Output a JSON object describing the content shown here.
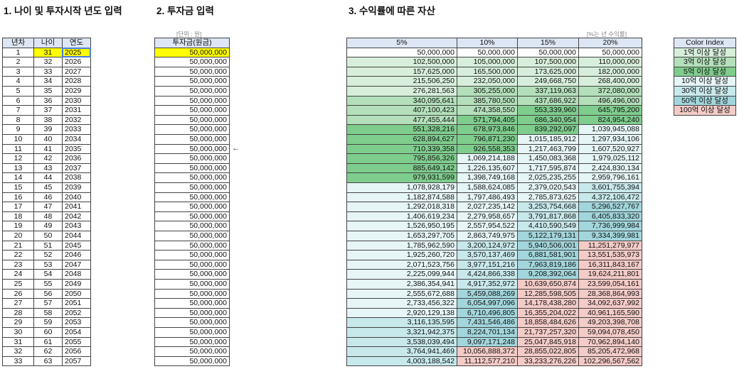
{
  "headers": {
    "section1": "1. 나이 및 투자시작 년도 입력",
    "section2": "2. 투자금 입력",
    "section3": "3. 수익률에 따른 자산"
  },
  "table1": {
    "columns": [
      "년차",
      "나이",
      "연도"
    ],
    "rows": [
      [
        1,
        31,
        2025
      ],
      [
        2,
        32,
        2026
      ],
      [
        3,
        33,
        2027
      ],
      [
        4,
        34,
        2028
      ],
      [
        5,
        35,
        2029
      ],
      [
        6,
        36,
        2030
      ],
      [
        7,
        37,
        2031
      ],
      [
        8,
        38,
        2032
      ],
      [
        9,
        39,
        2033
      ],
      [
        10,
        40,
        2034
      ],
      [
        11,
        41,
        2035
      ],
      [
        12,
        42,
        2036
      ],
      [
        13,
        43,
        2037
      ],
      [
        14,
        44,
        2038
      ],
      [
        15,
        45,
        2039
      ],
      [
        16,
        46,
        2040
      ],
      [
        17,
        47,
        2041
      ],
      [
        18,
        48,
        2042
      ],
      [
        19,
        49,
        2043
      ],
      [
        20,
        50,
        2044
      ],
      [
        21,
        51,
        2045
      ],
      [
        22,
        52,
        2046
      ],
      [
        23,
        53,
        2047
      ],
      [
        24,
        54,
        2048
      ],
      [
        25,
        55,
        2049
      ],
      [
        26,
        56,
        2050
      ],
      [
        27,
        57,
        2051
      ],
      [
        28,
        58,
        2052
      ],
      [
        29,
        59,
        2053
      ],
      [
        30,
        60,
        2054
      ],
      [
        31,
        61,
        2055
      ],
      [
        32,
        62,
        2056
      ],
      [
        33,
        63,
        2057
      ]
    ]
  },
  "table2": {
    "unit": "[단위 : 원]",
    "column": "투자금(원금)",
    "rows": [
      "50,000,000",
      "50,000,000",
      "50,000,000",
      "50,000,000",
      "50,000,000",
      "50,000,000",
      "50,000,000",
      "50,000,000",
      "50,000,000",
      "50,000,000",
      "50,000,000",
      "50,000,000",
      "50,000,000",
      "50,000,000",
      "50,000,000",
      "50,000,000",
      "50,000,000",
      "50,000,000",
      "50,000,000",
      "50,000,000",
      "50,000,000",
      "50,000,000",
      "50,000,000",
      "50,000,000",
      "50,000,000",
      "50,000,000",
      "50,000,000",
      "50,000,000",
      "50,000,000",
      "50,000,000",
      "50,000,000",
      "50,000,000",
      "50,000,000"
    ]
  },
  "arrow": "←",
  "table3": {
    "note": "[%는 년 수익률]",
    "columns": [
      "5%",
      "10%",
      "15%",
      "20%"
    ],
    "rows": [
      [
        "50,000,000",
        "50,000,000",
        "50,000,000",
        "50,000,000"
      ],
      [
        "102,500,000",
        "105,000,000",
        "107,500,000",
        "110,000,000"
      ],
      [
        "157,625,000",
        "165,500,000",
        "173,625,000",
        "182,000,000"
      ],
      [
        "215,506,250",
        "232,050,000",
        "249,668,750",
        "268,400,000"
      ],
      [
        "276,281,563",
        "305,255,000",
        "337,119,063",
        "372,080,000"
      ],
      [
        "340,095,641",
        "385,780,500",
        "437,686,922",
        "496,496,000"
      ],
      [
        "407,100,423",
        "474,358,550",
        "553,339,960",
        "645,795,200"
      ],
      [
        "477,455,444",
        "571,794,405",
        "686,340,954",
        "824,954,240"
      ],
      [
        "551,328,216",
        "678,973,846",
        "839,292,097",
        "1,039,945,088"
      ],
      [
        "628,894,627",
        "796,871,230",
        "1,015,185,912",
        "1,297,934,106"
      ],
      [
        "710,339,358",
        "926,558,353",
        "1,217,463,799",
        "1,607,520,927"
      ],
      [
        "795,856,326",
        "1,069,214,188",
        "1,450,083,368",
        "1,979,025,112"
      ],
      [
        "885,649,142",
        "1,226,135,607",
        "1,717,595,874",
        "2,424,830,134"
      ],
      [
        "979,931,599",
        "1,398,749,168",
        "2,025,235,255",
        "2,959,796,161"
      ],
      [
        "1,078,928,179",
        "1,588,624,085",
        "2,379,020,543",
        "3,601,755,394"
      ],
      [
        "1,182,874,588",
        "1,797,486,493",
        "2,785,873,625",
        "4,372,106,472"
      ],
      [
        "1,292,018,318",
        "2,027,235,142",
        "3,253,754,668",
        "5,296,527,767"
      ],
      [
        "1,406,619,234",
        "2,279,958,657",
        "3,791,817,868",
        "6,405,833,320"
      ],
      [
        "1,526,950,195",
        "2,557,954,522",
        "4,410,590,549",
        "7,736,999,984"
      ],
      [
        "1,653,297,705",
        "2,863,749,975",
        "5,122,179,131",
        "9,334,399,981"
      ],
      [
        "1,785,962,590",
        "3,200,124,972",
        "5,940,506,001",
        "11,251,279,977"
      ],
      [
        "1,925,260,720",
        "3,570,137,469",
        "6,881,581,901",
        "13,551,535,973"
      ],
      [
        "2,071,523,756",
        "3,977,151,216",
        "7,963,819,186",
        "16,311,843,167"
      ],
      [
        "2,225,099,944",
        "4,424,866,338",
        "9,208,392,064",
        "19,624,211,801"
      ],
      [
        "2,386,354,941",
        "4,917,352,972",
        "10,639,650,874",
        "23,599,054,161"
      ],
      [
        "2,555,672,688",
        "5,459,088,269",
        "12,285,598,505",
        "28,368,864,993"
      ],
      [
        "2,733,456,322",
        "6,054,997,096",
        "14,178,438,280",
        "34,092,637,992"
      ],
      [
        "2,920,129,138",
        "6,710,496,805",
        "16,355,204,022",
        "40,961,165,590"
      ],
      [
        "3,116,135,595",
        "7,431,546,486",
        "18,858,484,626",
        "49,203,398,708"
      ],
      [
        "3,321,942,375",
        "8,224,701,134",
        "21,737,257,320",
        "59,094,078,450"
      ],
      [
        "3,538,039,494",
        "9,097,171,248",
        "25,047,845,918",
        "70,962,894,140"
      ],
      [
        "3,764,941,469",
        "10,056,888,372",
        "28,855,022,805",
        "85,205,472,968"
      ],
      [
        "4,003,188,542",
        "11,112,577,210",
        "33,233,276,226",
        "102,296,567,562"
      ]
    ]
  },
  "colorIndex": {
    "title": "Color Index",
    "items": [
      {
        "label": "1억 이상 달성",
        "color": "#d7efda"
      },
      {
        "label": "3억 이상 달성",
        "color": "#b3e0ba"
      },
      {
        "label": "5억 이상 달성",
        "color": "#7fcd8d"
      },
      {
        "label": "10억 이상 달성",
        "color": "#e6f5f6"
      },
      {
        "label": "30억 이상 달성",
        "color": "#c8e9ec"
      },
      {
        "label": "50억 이상 달성",
        "color": "#a2d6dc"
      },
      {
        "label": "100억 이상 달성",
        "color": "#f4cbc7"
      }
    ]
  }
}
